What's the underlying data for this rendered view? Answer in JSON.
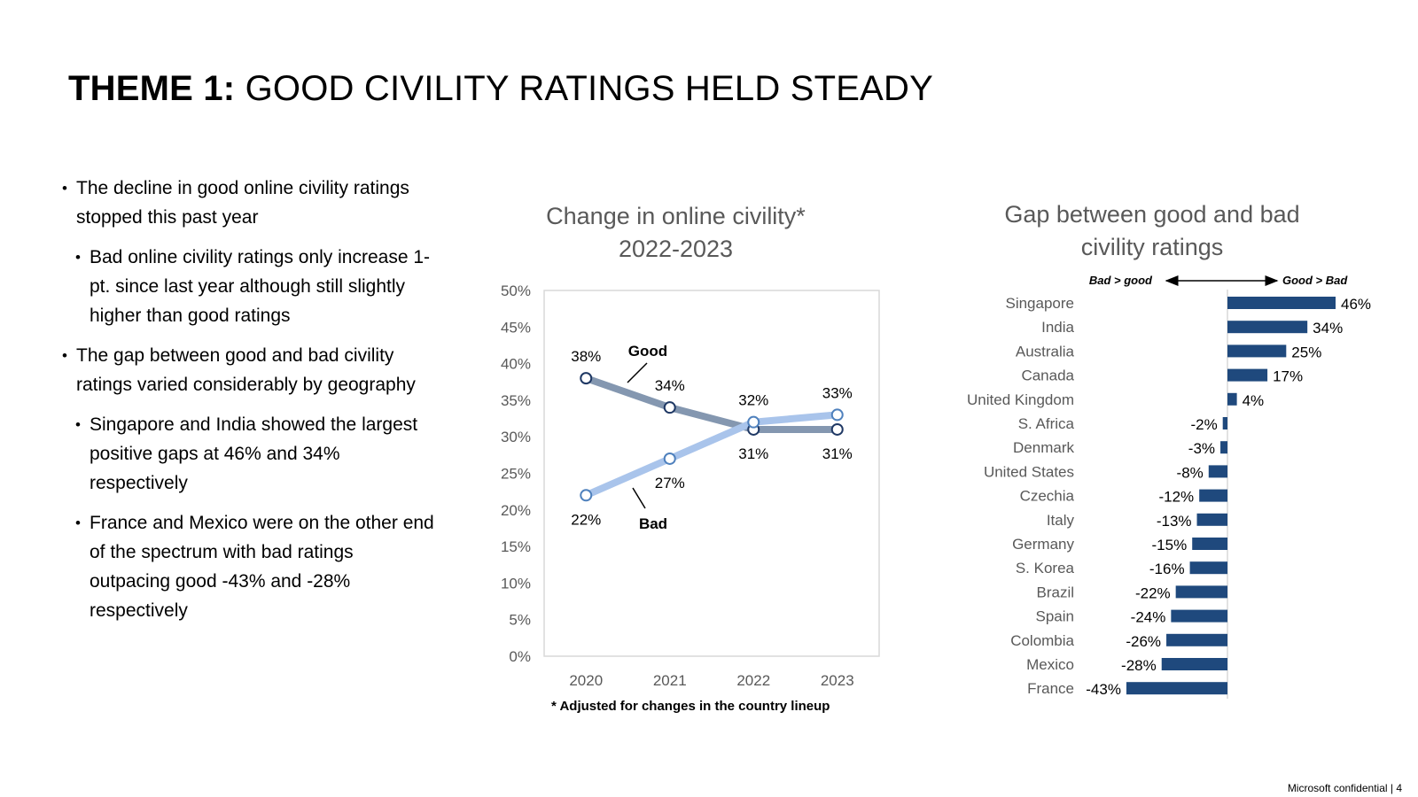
{
  "title": {
    "bold": "THEME 1:",
    "rest": " GOOD CIVILITY RATINGS HELD STEADY"
  },
  "bullets": [
    {
      "level": 1,
      "text": "The decline in good online civility ratings stopped this past year"
    },
    {
      "level": 2,
      "text": "Bad online civility ratings only increase 1-pt. since last year although still slightly higher than good ratings"
    },
    {
      "level": 1,
      "text": "The gap between good and bad civility ratings varied considerably by geography"
    },
    {
      "level": 2,
      "text": "Singapore and India showed the largest positive gaps at 46% and 34% respectively"
    },
    {
      "level": 2,
      "text": "France and Mexico were on the other end of the spectrum with bad ratings outpacing good -43% and -28% respectively"
    }
  ],
  "footnote": "* Adjusted for changes in the country lineup",
  "confidential": "Microsoft confidential | 4",
  "colors": {
    "good": "#8497B0",
    "bad": "#A9C4EB",
    "bar": "#1F497D",
    "title_gray": "#595959",
    "grid_axis": "#D9D9D9"
  },
  "chart_data": [
    {
      "type": "line",
      "title": "Change in online civility* 2022-2023",
      "title_lines": [
        "Change in online civility*",
        "2022-2023"
      ],
      "x": [
        "2020",
        "2021",
        "2022",
        "2023"
      ],
      "ylim": [
        0,
        50
      ],
      "yticks": [
        "0%",
        "5%",
        "10%",
        "15%",
        "20%",
        "25%",
        "30%",
        "35%",
        "40%",
        "45%",
        "50%"
      ],
      "grid": false,
      "series": [
        {
          "name": "Good",
          "values": [
            38,
            34,
            31,
            31
          ],
          "labels": [
            "38%",
            "34%",
            "31%",
            "31%"
          ]
        },
        {
          "name": "Bad",
          "values": [
            22,
            27,
            32,
            33
          ],
          "labels": [
            "22%",
            "27%",
            "32%",
            "33%"
          ]
        }
      ]
    },
    {
      "type": "bar",
      "orientation": "horizontal",
      "title": "Gap between good and bad civility ratings",
      "title_lines": [
        "Gap between good and bad",
        "civility ratings"
      ],
      "arrow_left_label": "Bad > good",
      "arrow_right_label": "Good > Bad",
      "categories": [
        "Singapore",
        "India",
        "Australia",
        "Canada",
        "United Kingdom",
        "S. Africa",
        "Denmark",
        "United States",
        "Czechia",
        "Italy",
        "Germany",
        "S. Korea",
        "Brazil",
        "Spain",
        "Colombia",
        "Mexico",
        "France"
      ],
      "values": [
        46,
        34,
        25,
        17,
        4,
        -2,
        -3,
        -8,
        -12,
        -13,
        -15,
        -16,
        -22,
        -24,
        -26,
        -28,
        -43
      ],
      "labels": [
        "46%",
        "34%",
        "25%",
        "17%",
        "4%",
        "-2%",
        "-3%",
        "-8%",
        "-12%",
        "-13%",
        "-15%",
        "-16%",
        "-22%",
        "-24%",
        "-26%",
        "-28%",
        "-43%"
      ]
    }
  ]
}
